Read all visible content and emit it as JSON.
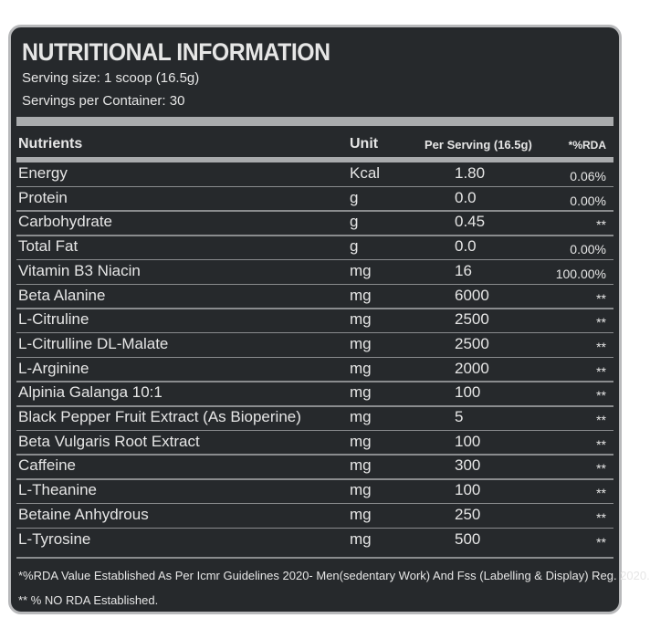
{
  "header": {
    "title": "NUTRITIONAL INFORMATION",
    "serving_size": "Serving size: 1 scoop (16.5g)",
    "servings_per_container": "Servings per Container: 30"
  },
  "table": {
    "columns": [
      "Nutrients",
      "Unit",
      "Per Serving (16.5g)",
      "*%RDA"
    ],
    "rows": [
      [
        "Energy",
        "Kcal",
        "1.80",
        "0.06%"
      ],
      [
        "Protein",
        "g",
        "0.0",
        "0.00%"
      ],
      [
        "Carbohydrate",
        "g",
        "0.45",
        "**"
      ],
      [
        "Total Fat",
        "g",
        "0.0",
        "0.00%"
      ],
      [
        "Vitamin B3 Niacin",
        "mg",
        "16",
        "100.00%"
      ],
      [
        "Beta Alanine",
        "mg",
        "6000",
        "**"
      ],
      [
        "L-Citruline",
        "mg",
        "2500",
        "**"
      ],
      [
        "L-Citrulline DL-Malate",
        "mg",
        "2500",
        "**"
      ],
      [
        "L-Arginine",
        "mg",
        "2000",
        "**"
      ],
      [
        "Alpinia Galanga 10:1",
        "mg",
        "100",
        "**"
      ],
      [
        "Black Pepper Fruit Extract (As Bioperine)",
        "mg",
        "5",
        "**"
      ],
      [
        "Beta Vulgaris Root Extract",
        "mg",
        "100",
        "**"
      ],
      [
        "Caffeine",
        "mg",
        "300",
        "**"
      ],
      [
        "L-Theanine",
        "mg",
        "100",
        "**"
      ],
      [
        "Betaine Anhydrous",
        "mg",
        "250",
        "**"
      ],
      [
        "L-Tyrosine",
        "mg",
        "500",
        "**"
      ]
    ]
  },
  "footnotes": [
    "*%RDA Value Established As Per Icmr Guidelines 2020- Men(sedentary Work) And Fss (Labelling & Display) Reg. 2020.",
    "** % NO RDA Established."
  ]
}
